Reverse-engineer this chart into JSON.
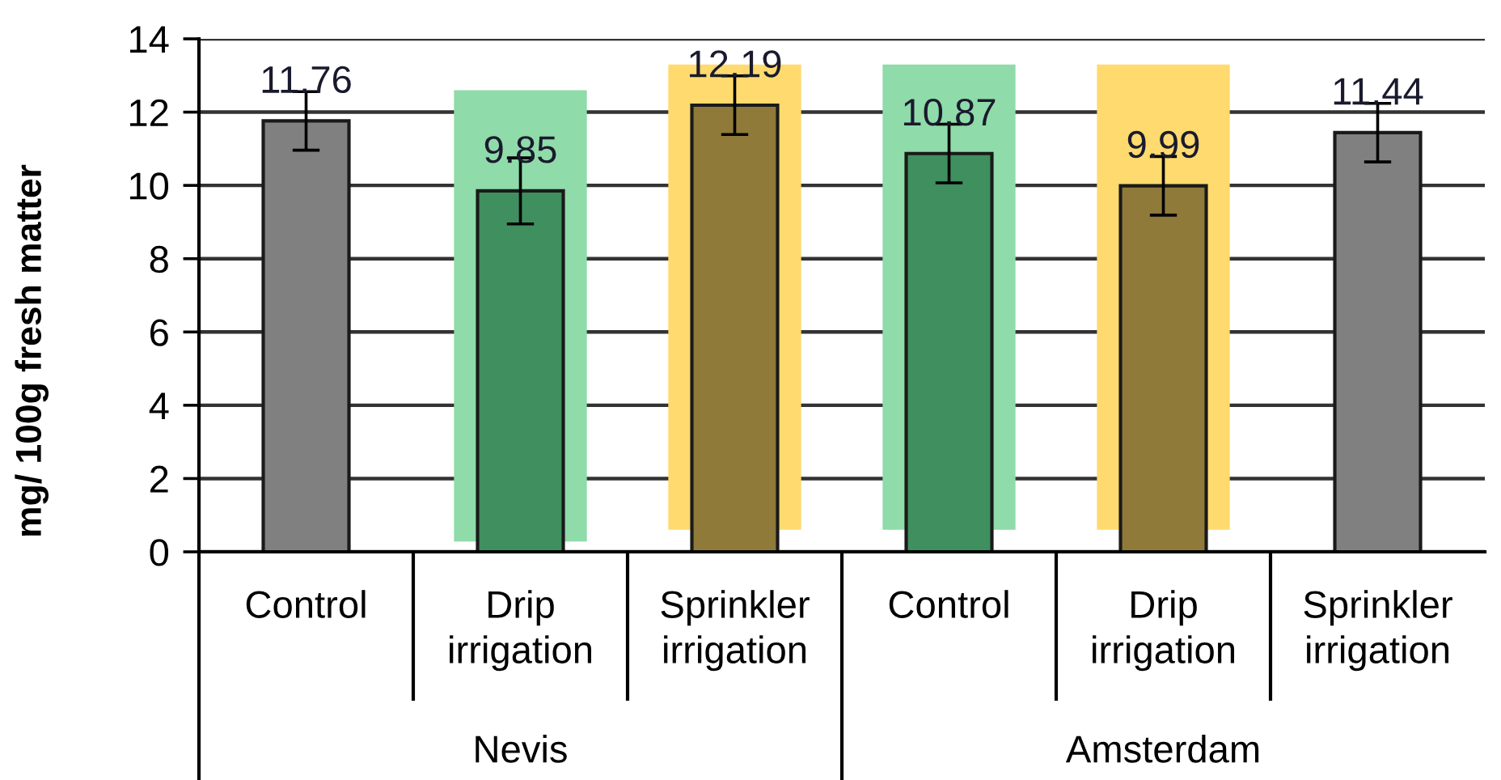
{
  "chart_data": {
    "type": "bar",
    "ylabel": "mg/ 100g fresh matter",
    "categories": [
      "Control",
      "Drip\nirrigation",
      "Sprinkler\nirrigation",
      "Control",
      "Drip\nirrigation",
      "Sprinkler\nirrigation"
    ],
    "values": [
      11.76,
      9.85,
      12.19,
      10.87,
      9.99,
      11.44
    ],
    "errors": [
      0.8,
      0.9,
      0.8,
      0.8,
      0.8,
      0.8
    ],
    "colors": [
      "#808080",
      "#3f8f5f",
      "#8f7a3a",
      "#3f8f5f",
      "#8f7a3a",
      "#808080"
    ],
    "data_labels": true,
    "ylim": [
      0,
      14
    ],
    "yticks": [
      0,
      2,
      4,
      6,
      8,
      10,
      12,
      14
    ],
    "grid": "y",
    "annotations": [
      "Nevis",
      "Amsterdam"
    ]
  }
}
